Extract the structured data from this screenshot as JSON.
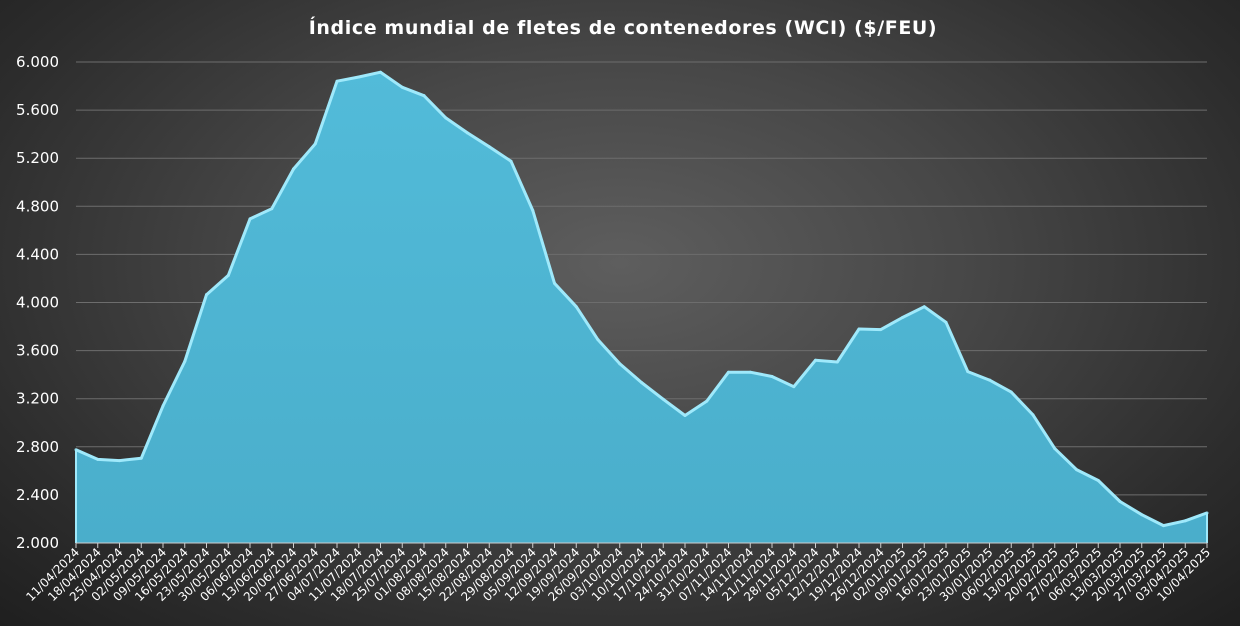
{
  "chart_data": {
    "type": "area",
    "title": "Índice mundial de fletes de contenedores (WCI) ($/FEU)",
    "xlabel": "",
    "ylabel": "",
    "ylim": [
      2000,
      6000
    ],
    "yticks": [
      2000,
      2400,
      2800,
      3200,
      3600,
      4000,
      4400,
      4800,
      5200,
      5600,
      6000
    ],
    "ytick_labels": [
      "2.000",
      "2.400",
      "2.800",
      "3.200",
      "3.600",
      "4.000",
      "4.400",
      "4.800",
      "5.200",
      "5.600",
      "6.000"
    ],
    "grid": true,
    "legend": "none",
    "colors": {
      "fill": "#4fb6d4",
      "edge": "#9fe9fb",
      "grid": "#6d6d6d",
      "text": "#ffffff"
    },
    "categories": [
      "11/04/2024",
      "18/04/2024",
      "25/04/2024",
      "02/05/2024",
      "09/05/2024",
      "16/05/2024",
      "23/05/2024",
      "30/05/2024",
      "06/06/2024",
      "13/06/2024",
      "20/06/2024",
      "27/06/2024",
      "04/07/2024",
      "11/07/2024",
      "18/07/2024",
      "25/07/2024",
      "01/08/2024",
      "08/08/2024",
      "15/08/2024",
      "22/08/2024",
      "29/08/2024",
      "05/09/2024",
      "12/09/2024",
      "19/09/2024",
      "26/09/2024",
      "03/10/2024",
      "10/10/2024",
      "17/10/2024",
      "24/10/2024",
      "31/10/2024",
      "07/11/2024",
      "14/11/2024",
      "21/11/2024",
      "28/11/2024",
      "05/12/2024",
      "12/12/2024",
      "19/12/2024",
      "26/12/2024",
      "02/01/2025",
      "09/01/2025",
      "16/01/2025",
      "23/01/2025",
      "30/01/2025",
      "06/02/2025",
      "13/02/2025",
      "20/02/2025",
      "27/02/2025",
      "06/03/2025",
      "13/03/2025",
      "20/03/2025",
      "27/03/2025",
      "03/04/2025",
      "10/04/2025"
    ],
    "series": [
      {
        "values": [
          2775,
          2695,
          2685,
          2705,
          3140,
          3510,
          4065,
          4225,
          4695,
          4780,
          5110,
          5320,
          5840,
          5875,
          5915,
          5790,
          5720,
          5535,
          5410,
          5295,
          5175,
          4765,
          4160,
          3965,
          3690,
          3490,
          3335,
          3195,
          3060,
          3180,
          3420,
          3420,
          3385,
          3300,
          3520,
          3505,
          3780,
          3775,
          3875,
          3965,
          3835,
          3425,
          3355,
          3255,
          3065,
          2785,
          2610,
          2520,
          2345,
          2235,
          2145,
          2185,
          2250
        ]
      }
    ]
  }
}
